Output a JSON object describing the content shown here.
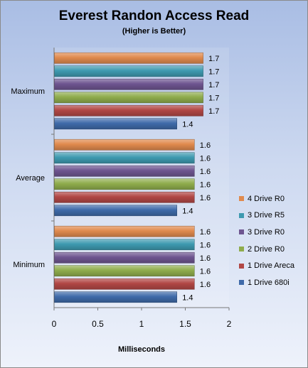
{
  "chart_data": {
    "type": "bar",
    "orientation": "horizontal",
    "title": "Everest Randon Access Read",
    "subtitle": "(Higher is Better)",
    "xlabel": "Milliseconds",
    "ylabel": "",
    "xlim": [
      0,
      2
    ],
    "xticks": [
      "0",
      "0.5",
      "1",
      "1.5",
      "2"
    ],
    "categories": [
      "Maximum",
      "Average",
      "Minimum"
    ],
    "series": [
      {
        "name": "4 Drive R0",
        "color": "#e08a4e",
        "values": [
          1.7,
          1.6,
          1.6
        ]
      },
      {
        "name": "3 Drive R5",
        "color": "#3e9ab0",
        "values": [
          1.7,
          1.6,
          1.6
        ]
      },
      {
        "name": "3 Drive R0",
        "color": "#6e5590",
        "values": [
          1.7,
          1.6,
          1.6
        ]
      },
      {
        "name": "2 Drive R0",
        "color": "#8fac4c",
        "values": [
          1.7,
          1.6,
          1.6
        ]
      },
      {
        "name": "1 Drive Areca",
        "color": "#b14745",
        "values": [
          1.7,
          1.6,
          1.6
        ]
      },
      {
        "name": "1 Drive 680i",
        "color": "#3f6aa9",
        "values": [
          1.4,
          1.4,
          1.4
        ]
      }
    ],
    "data_labels": [
      [
        "1.7",
        "1.7",
        "1.7",
        "1.7",
        "1.7",
        "1.4"
      ],
      [
        "1.6",
        "1.6",
        "1.6",
        "1.6",
        "1.6",
        "1.4"
      ],
      [
        "1.6",
        "1.6",
        "1.6",
        "1.6",
        "1.6",
        "1.4"
      ]
    ],
    "legend": "right",
    "grid": false
  }
}
